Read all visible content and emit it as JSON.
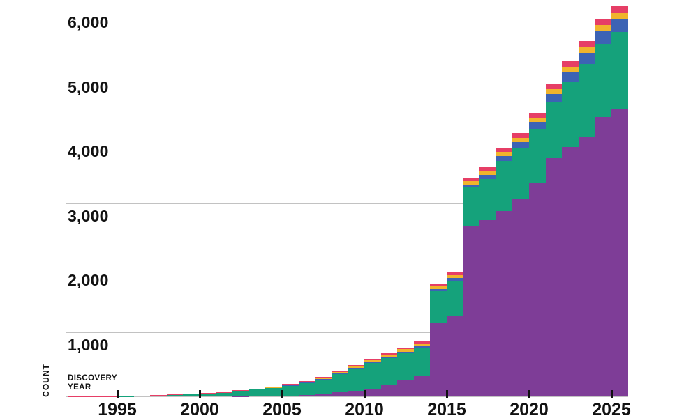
{
  "page": {
    "background": "#ffffff"
  },
  "axis": {
    "y_axis_label": "COUNT",
    "x_axis_label_line1": "DISCOVERY",
    "x_axis_label_line2": "YEAR",
    "text_color": "#121212",
    "gridline_color": "#c2c2c2",
    "tick_mark_color": "#101010",
    "y_gridline_values": [
      0,
      1000,
      2000,
      3000,
      4000,
      5000,
      6000
    ],
    "y_ticks": [
      {
        "label": "1,000",
        "value": 1000
      },
      {
        "label": "2,000",
        "value": 2000
      },
      {
        "label": "3,000",
        "value": 3000
      },
      {
        "label": "4,000",
        "value": 4000
      },
      {
        "label": "5,000",
        "value": 5000
      },
      {
        "label": "6,000",
        "value": 6000
      }
    ],
    "x_ticks": [
      {
        "label": "1995",
        "value": 1995
      },
      {
        "label": "2000",
        "value": 2000
      },
      {
        "label": "2005",
        "value": 2005
      },
      {
        "label": "2010",
        "value": 2010
      },
      {
        "label": "2015",
        "value": 2015
      },
      {
        "label": "2020",
        "value": 2020
      },
      {
        "label": "2025",
        "value": 2025
      }
    ]
  },
  "chart_data": {
    "type": "bar",
    "stacked": true,
    "title": "",
    "xlabel": "DISCOVERY YEAR",
    "ylabel": "COUNT",
    "legend_position": "none",
    "grid": "horizontal",
    "xlim": [
      1991.9,
      2026
    ],
    "ylim": [
      0,
      6200
    ],
    "x": [
      1992,
      1993,
      1994,
      1995,
      1996,
      1997,
      1998,
      1999,
      2000,
      2001,
      2002,
      2003,
      2004,
      2005,
      2006,
      2007,
      2008,
      2009,
      2010,
      2011,
      2012,
      2013,
      2014,
      2015,
      2016,
      2017,
      2018,
      2019,
      2020,
      2021,
      2022,
      2023,
      2024,
      2025
    ],
    "series": [
      {
        "name": "purple",
        "color": "#7e3d97",
        "values": [
          0,
          0,
          0,
          0,
          0,
          0,
          0,
          0,
          0,
          0,
          2,
          6,
          10,
          14,
          21,
          36,
          62,
          85,
          115,
          185,
          250,
          320,
          1135,
          1255,
          2640,
          2735,
          2875,
          3060,
          3320,
          3700,
          3870,
          4035,
          4335,
          4450
        ]
      },
      {
        "name": "green",
        "color": "#15a27b",
        "values": [
          0,
          0,
          1,
          5,
          11,
          17,
          26,
          35,
          46,
          62,
          83,
          105,
          125,
          155,
          185,
          225,
          285,
          340,
          400,
          410,
          420,
          430,
          500,
          540,
          600,
          640,
          780,
          800,
          830,
          870,
          1010,
          1120,
          1140,
          1200
        ]
      },
      {
        "name": "blue",
        "color": "#3c63b4",
        "values": [
          0,
          0,
          0,
          0,
          0,
          0,
          0,
          0,
          0,
          0,
          0,
          0,
          3,
          4,
          8,
          10,
          12,
          15,
          17,
          19,
          22,
          26,
          30,
          38,
          47,
          60,
          75,
          90,
          105,
          125,
          150,
          175,
          195,
          210
        ]
      },
      {
        "name": "yellow",
        "color": "#f0b42c",
        "values": [
          0,
          0,
          0,
          0,
          0,
          0,
          0,
          0,
          0,
          0,
          0,
          0,
          4,
          7,
          11,
          16,
          22,
          28,
          33,
          36,
          38,
          40,
          42,
          46,
          50,
          55,
          60,
          65,
          70,
          76,
          82,
          88,
          95,
          100
        ]
      },
      {
        "name": "pink",
        "color": "#e63e66",
        "values": [
          2,
          3,
          3,
          4,
          4,
          4,
          5,
          5,
          5,
          6,
          8,
          9,
          10,
          11,
          12,
          14,
          16,
          18,
          20,
          25,
          30,
          38,
          48,
          52,
          58,
          62,
          68,
          72,
          78,
          82,
          88,
          92,
          96,
          100
        ]
      }
    ]
  }
}
